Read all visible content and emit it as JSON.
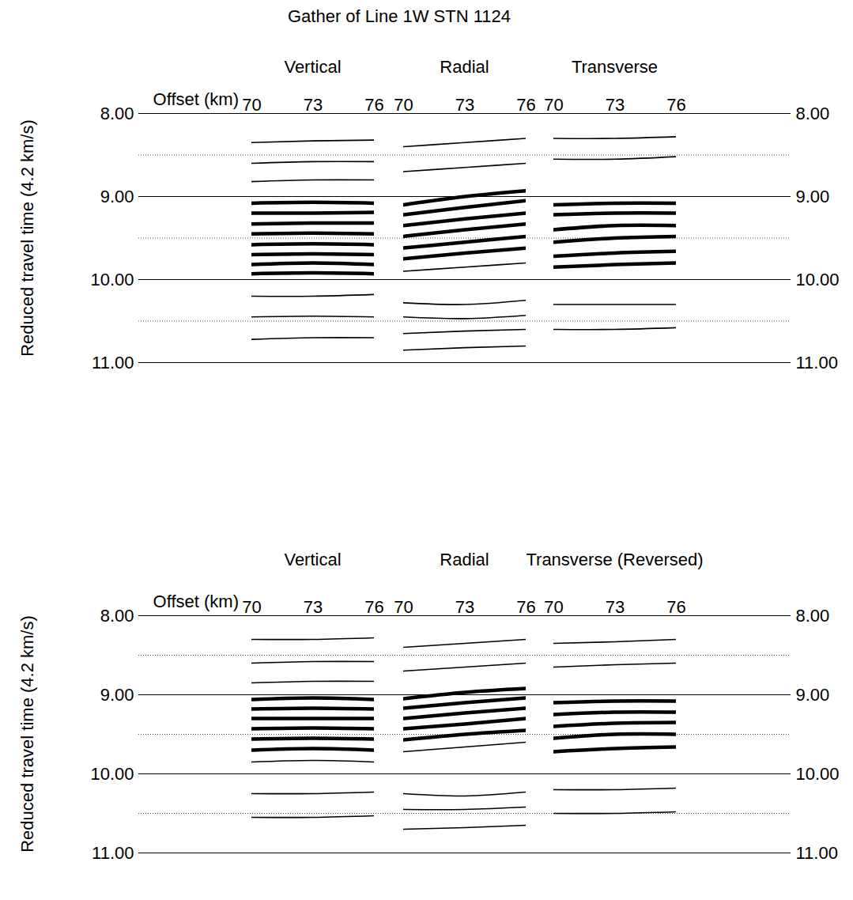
{
  "chart_data": [
    {
      "type": "seismic_gather",
      "title": "Gather of Line 1W STN 1124",
      "color": "#000000",
      "grid": true,
      "y_label": "Reduced travel time (4.2 km/s)",
      "x_label": "Offset (km)",
      "ylim": [
        8,
        11
      ],
      "yticks": [
        {
          "value": 8,
          "label": "8.00"
        },
        {
          "value": 9,
          "label": "9.00"
        },
        {
          "value": 10,
          "label": "10.00"
        },
        {
          "value": 11,
          "label": "11.00"
        }
      ],
      "yminor_ticks": [
        8.5,
        9.5,
        10.5
      ],
      "panels": [
        {
          "title": "Vertical",
          "xlim": [
            70,
            76
          ],
          "xticks": [
            70,
            73,
            76
          ],
          "x": [
            70,
            73,
            76
          ],
          "series": [
            {
              "values": [
                9.08,
                9.07,
                9.08
              ],
              "line_style": "thick"
            },
            {
              "values": [
                9.2,
                9.2,
                9.19
              ],
              "line_style": "thick"
            },
            {
              "values": [
                9.33,
                9.32,
                9.32
              ],
              "line_style": "thick"
            },
            {
              "values": [
                9.45,
                9.44,
                9.45
              ],
              "line_style": "thick"
            },
            {
              "values": [
                9.58,
                9.57,
                9.58
              ],
              "line_style": "thick"
            },
            {
              "values": [
                9.7,
                9.69,
                9.7
              ],
              "line_style": "thick"
            },
            {
              "values": [
                9.82,
                9.8,
                9.82
              ],
              "line_style": "thick"
            },
            {
              "values": [
                9.93,
                9.92,
                9.93
              ],
              "line_style": "thick"
            },
            {
              "values": [
                8.35,
                8.33,
                8.32
              ],
              "line_style": "thin"
            },
            {
              "values": [
                8.6,
                8.58,
                8.58
              ],
              "line_style": "thin"
            },
            {
              "values": [
                8.82,
                8.8,
                8.8
              ],
              "line_style": "thin"
            },
            {
              "values": [
                10.2,
                10.2,
                10.18
              ],
              "line_style": "thin"
            },
            {
              "values": [
                10.45,
                10.44,
                10.45
              ],
              "line_style": "thin"
            },
            {
              "values": [
                10.72,
                10.7,
                10.7
              ],
              "line_style": "thin"
            }
          ]
        },
        {
          "title": "Radial",
          "xlim": [
            70,
            76
          ],
          "xticks": [
            70,
            73,
            76
          ],
          "x": [
            70,
            73,
            76
          ],
          "series": [
            {
              "values": [
                9.1,
                9.0,
                8.93
              ],
              "line_style": "thick"
            },
            {
              "values": [
                9.22,
                9.13,
                9.05
              ],
              "line_style": "thick"
            },
            {
              "values": [
                9.35,
                9.27,
                9.2
              ],
              "line_style": "thick"
            },
            {
              "values": [
                9.48,
                9.4,
                9.33
              ],
              "line_style": "thick"
            },
            {
              "values": [
                9.62,
                9.55,
                9.48
              ],
              "line_style": "thick"
            },
            {
              "values": [
                9.75,
                9.68,
                9.62
              ],
              "line_style": "thick"
            },
            {
              "values": [
                8.4,
                8.35,
                8.3
              ],
              "line_style": "thin"
            },
            {
              "values": [
                8.7,
                8.65,
                8.6
              ],
              "line_style": "thin"
            },
            {
              "values": [
                9.9,
                9.85,
                9.8
              ],
              "line_style": "thin"
            },
            {
              "values": [
                10.28,
                10.3,
                10.25
              ],
              "line_style": "thin"
            },
            {
              "values": [
                10.45,
                10.47,
                10.43
              ],
              "line_style": "thin"
            },
            {
              "values": [
                10.65,
                10.62,
                10.6
              ],
              "line_style": "thin"
            },
            {
              "values": [
                10.85,
                10.82,
                10.8
              ],
              "line_style": "thin"
            }
          ]
        },
        {
          "title": "Transverse",
          "xlim": [
            70,
            76
          ],
          "xticks": [
            70,
            73,
            76
          ],
          "x": [
            70,
            73,
            76
          ],
          "series": [
            {
              "values": [
                9.1,
                9.08,
                9.08
              ],
              "line_style": "thick"
            },
            {
              "values": [
                9.22,
                9.2,
                9.2
              ],
              "line_style": "thick"
            },
            {
              "values": [
                9.4,
                9.35,
                9.35
              ],
              "line_style": "thick"
            },
            {
              "values": [
                9.55,
                9.5,
                9.48
              ],
              "line_style": "thick"
            },
            {
              "values": [
                9.72,
                9.68,
                9.66
              ],
              "line_style": "thick"
            },
            {
              "values": [
                9.85,
                9.82,
                9.8
              ],
              "line_style": "thick"
            },
            {
              "values": [
                8.3,
                8.3,
                8.28
              ],
              "line_style": "thin"
            },
            {
              "values": [
                8.55,
                8.55,
                8.52
              ],
              "line_style": "thin"
            },
            {
              "values": [
                10.3,
                10.3,
                10.3
              ],
              "line_style": "thin"
            },
            {
              "values": [
                10.6,
                10.6,
                10.58
              ],
              "line_style": "thin"
            }
          ]
        }
      ]
    },
    {
      "type": "seismic_gather",
      "color": "#000000",
      "grid": true,
      "y_label": "Reduced travel time (4.2 km/s)",
      "x_label": "Offset (km)",
      "ylim": [
        8,
        11
      ],
      "yticks": [
        {
          "value": 8,
          "label": "8.00"
        },
        {
          "value": 9,
          "label": "9.00"
        },
        {
          "value": 10,
          "label": "10.00"
        },
        {
          "value": 11,
          "label": "11.00"
        }
      ],
      "yminor_ticks": [
        8.5,
        9.5,
        10.5
      ],
      "panels": [
        {
          "title": "Vertical",
          "xlim": [
            70,
            76
          ],
          "xticks": [
            70,
            73,
            76
          ],
          "x": [
            70,
            73,
            76
          ],
          "series": [
            {
              "values": [
                9.06,
                9.04,
                9.06
              ],
              "line_style": "thick"
            },
            {
              "values": [
                9.18,
                9.17,
                9.18
              ],
              "line_style": "thick"
            },
            {
              "values": [
                9.3,
                9.3,
                9.3
              ],
              "line_style": "thick"
            },
            {
              "values": [
                9.43,
                9.42,
                9.43
              ],
              "line_style": "thick"
            },
            {
              "values": [
                9.56,
                9.55,
                9.56
              ],
              "line_style": "thick"
            },
            {
              "values": [
                9.7,
                9.68,
                9.7
              ],
              "line_style": "thick"
            },
            {
              "values": [
                9.85,
                9.83,
                9.85
              ],
              "line_style": "thin"
            },
            {
              "values": [
                8.3,
                8.3,
                8.28
              ],
              "line_style": "thin"
            },
            {
              "values": [
                8.6,
                8.58,
                8.58
              ],
              "line_style": "thin"
            },
            {
              "values": [
                8.85,
                8.83,
                8.83
              ],
              "line_style": "thin"
            },
            {
              "values": [
                10.25,
                10.25,
                10.23
              ],
              "line_style": "thin"
            },
            {
              "values": [
                10.55,
                10.55,
                10.53
              ],
              "line_style": "thin"
            }
          ]
        },
        {
          "title": "Radial",
          "xlim": [
            70,
            76
          ],
          "xticks": [
            70,
            73,
            76
          ],
          "x": [
            70,
            73,
            76
          ],
          "series": [
            {
              "values": [
                9.05,
                8.97,
                8.92
              ],
              "line_style": "thick"
            },
            {
              "values": [
                9.17,
                9.1,
                9.04
              ],
              "line_style": "thick"
            },
            {
              "values": [
                9.3,
                9.23,
                9.17
              ],
              "line_style": "thick"
            },
            {
              "values": [
                9.43,
                9.37,
                9.3
              ],
              "line_style": "thick"
            },
            {
              "values": [
                9.57,
                9.5,
                9.45
              ],
              "line_style": "thick"
            },
            {
              "values": [
                9.72,
                9.66,
                9.6
              ],
              "line_style": "thin"
            },
            {
              "values": [
                8.4,
                8.35,
                8.3
              ],
              "line_style": "thin"
            },
            {
              "values": [
                8.7,
                8.65,
                8.6
              ],
              "line_style": "thin"
            },
            {
              "values": [
                10.25,
                10.28,
                10.23
              ],
              "line_style": "thin"
            },
            {
              "values": [
                10.45,
                10.45,
                10.42
              ],
              "line_style": "thin"
            },
            {
              "values": [
                10.7,
                10.68,
                10.65
              ],
              "line_style": "thin"
            }
          ]
        },
        {
          "title": "Transverse (Reversed)",
          "xlim": [
            70,
            76
          ],
          "xticks": [
            70,
            73,
            76
          ],
          "x": [
            70,
            73,
            76
          ],
          "series": [
            {
              "values": [
                9.1,
                9.08,
                9.08
              ],
              "line_style": "thick"
            },
            {
              "values": [
                9.25,
                9.22,
                9.22
              ],
              "line_style": "thick"
            },
            {
              "values": [
                9.4,
                9.36,
                9.35
              ],
              "line_style": "thick"
            },
            {
              "values": [
                9.55,
                9.5,
                9.5
              ],
              "line_style": "thick"
            },
            {
              "values": [
                9.72,
                9.68,
                9.66
              ],
              "line_style": "thick"
            },
            {
              "values": [
                8.35,
                8.33,
                8.3
              ],
              "line_style": "thin"
            },
            {
              "values": [
                8.65,
                8.62,
                8.6
              ],
              "line_style": "thin"
            },
            {
              "values": [
                10.2,
                10.2,
                10.18
              ],
              "line_style": "thin"
            },
            {
              "values": [
                10.5,
                10.5,
                10.48
              ],
              "line_style": "thin"
            }
          ]
        }
      ]
    }
  ]
}
